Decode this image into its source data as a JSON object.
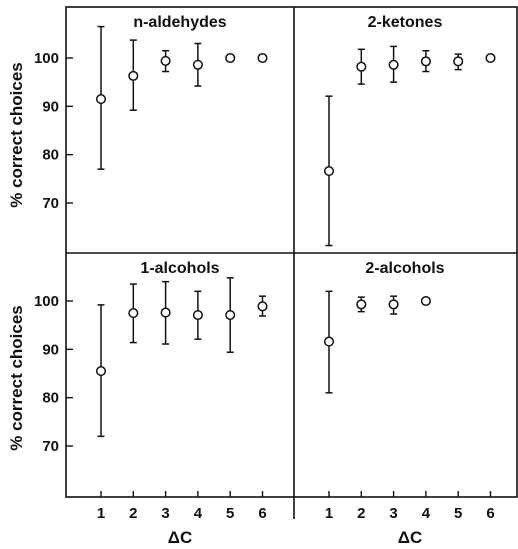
{
  "chart_data": {
    "type": "scatter",
    "shared_ylabel": "% correct choices",
    "shared_xlabel": "ΔC",
    "x_ticks": [
      1,
      2,
      3,
      4,
      5,
      6
    ],
    "y_ticks": [
      70,
      80,
      90,
      100
    ],
    "ylim": [
      60,
      108
    ],
    "xlim": [
      0.3,
      6.7
    ],
    "grid": false,
    "error_bars": true,
    "panels": [
      {
        "title": "n-aldehydes",
        "points": [
          {
            "x": 1,
            "y": 91.5,
            "low": 77,
            "high": 106.5
          },
          {
            "x": 2,
            "y": 96.3,
            "low": 89.2,
            "high": 103.7
          },
          {
            "x": 3,
            "y": 99.4,
            "low": 97.2,
            "high": 101.5
          },
          {
            "x": 4,
            "y": 98.6,
            "low": 94.2,
            "high": 103.0
          },
          {
            "x": 5,
            "y": 100.0,
            "low": 100.0,
            "high": 100.0
          },
          {
            "x": 6,
            "y": 100.0,
            "low": 100.0,
            "high": 100.0
          }
        ]
      },
      {
        "title": "2-ketones",
        "points": [
          {
            "x": 1,
            "y": 76.6,
            "low": 61.2,
            "high": 92.1
          },
          {
            "x": 2,
            "y": 98.2,
            "low": 94.6,
            "high": 101.8
          },
          {
            "x": 3,
            "y": 98.6,
            "low": 95.0,
            "high": 102.4
          },
          {
            "x": 4,
            "y": 99.3,
            "low": 97.2,
            "high": 101.5
          },
          {
            "x": 5,
            "y": 99.3,
            "low": 97.6,
            "high": 100.8
          },
          {
            "x": 6,
            "y": 100.0,
            "low": 100.0,
            "high": 100.0
          }
        ]
      },
      {
        "title": "1-alcohols",
        "points": [
          {
            "x": 1,
            "y": 85.5,
            "low": 72.0,
            "high": 99.2
          },
          {
            "x": 2,
            "y": 97.5,
            "low": 91.4,
            "high": 103.5
          },
          {
            "x": 3,
            "y": 97.6,
            "low": 91.1,
            "high": 104.0
          },
          {
            "x": 4,
            "y": 97.1,
            "low": 92.1,
            "high": 102.0
          },
          {
            "x": 5,
            "y": 97.1,
            "low": 89.4,
            "high": 104.8
          },
          {
            "x": 6,
            "y": 98.9,
            "low": 96.9,
            "high": 101.0
          }
        ]
      },
      {
        "title": "2-alcohols",
        "points": [
          {
            "x": 1,
            "y": 91.6,
            "low": 81.0,
            "high": 102.0
          },
          {
            "x": 2,
            "y": 99.3,
            "low": 97.8,
            "high": 100.8
          },
          {
            "x": 3,
            "y": 99.3,
            "low": 97.3,
            "high": 101.0
          },
          {
            "x": 4,
            "y": 100.0,
            "low": 100.0,
            "high": 100.0
          }
        ]
      }
    ]
  }
}
